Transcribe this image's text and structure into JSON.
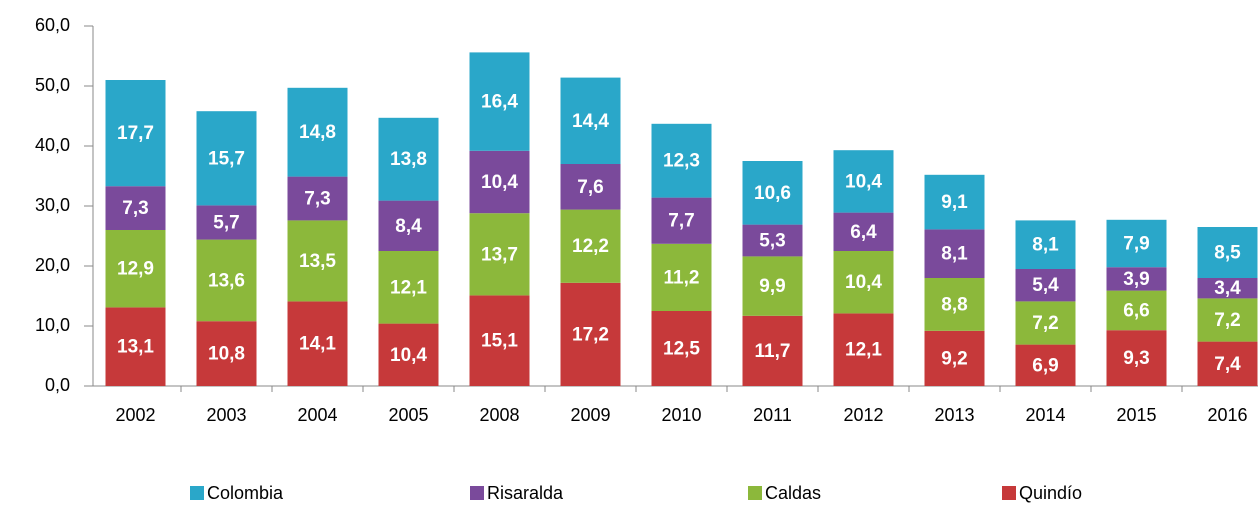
{
  "chart_data": {
    "type": "stacked-bar",
    "categories": [
      "2002",
      "2003",
      "2004",
      "2005",
      "2008",
      "2009",
      "2010",
      "2011",
      "2012",
      "2013",
      "2014",
      "2015",
      "2016"
    ],
    "series": [
      {
        "name": "Colombia",
        "color": "#2aa7c9",
        "values": [
          17.7,
          15.7,
          14.8,
          13.8,
          16.4,
          14.4,
          12.3,
          10.6,
          10.4,
          9.1,
          8.1,
          7.9,
          8.5
        ],
        "value_labels": [
          "17,7",
          "15,7",
          "14,8",
          "13,8",
          "16,4",
          "14,4",
          "12,3",
          "10,6",
          "10,4",
          "9,1",
          "8,1",
          "7,9",
          "8,5"
        ]
      },
      {
        "name": "Risaralda",
        "color": "#7a4a9b",
        "values": [
          7.3,
          5.7,
          7.3,
          8.4,
          10.4,
          7.6,
          7.7,
          5.3,
          6.4,
          8.1,
          5.4,
          3.9,
          3.4
        ],
        "value_labels": [
          "7,3",
          "5,7",
          "7,3",
          "8,4",
          "10,4",
          "7,6",
          "7,7",
          "5,3",
          "6,4",
          "8,1",
          "5,4",
          "3,9",
          "3,4"
        ]
      },
      {
        "name": "Caldas",
        "color": "#8cb83b",
        "values": [
          12.9,
          13.6,
          13.5,
          12.1,
          13.7,
          12.2,
          11.2,
          9.9,
          10.4,
          8.8,
          7.2,
          6.6,
          7.2
        ],
        "value_labels": [
          "12,9",
          "13,6",
          "13,5",
          "12,1",
          "13,7",
          "12,2",
          "11,2",
          "9,9",
          "10,4",
          "8,8",
          "7,2",
          "6,6",
          "7,2"
        ]
      },
      {
        "name": "Quindío",
        "color": "#c6393a",
        "values": [
          13.1,
          10.8,
          14.1,
          10.4,
          15.1,
          17.2,
          12.5,
          11.7,
          12.1,
          9.2,
          6.9,
          9.3,
          7.4
        ],
        "value_labels": [
          "13,1",
          "10,8",
          "14,1",
          "10,4",
          "15,1",
          "17,2",
          "12,5",
          "11,7",
          "12,1",
          "9,2",
          "6,9",
          "9,3",
          "7,4"
        ]
      }
    ],
    "ylim": [
      0,
      60
    ],
    "yticks": [
      {
        "value": 0,
        "label": "0,0"
      },
      {
        "value": 10,
        "label": "10,0"
      },
      {
        "value": 20,
        "label": "20,0"
      },
      {
        "value": 30,
        "label": "30,0"
      },
      {
        "value": 40,
        "label": "40,0"
      },
      {
        "value": 50,
        "label": "50,0"
      },
      {
        "value": 60,
        "label": "60,0"
      }
    ],
    "legend": "bottom"
  }
}
